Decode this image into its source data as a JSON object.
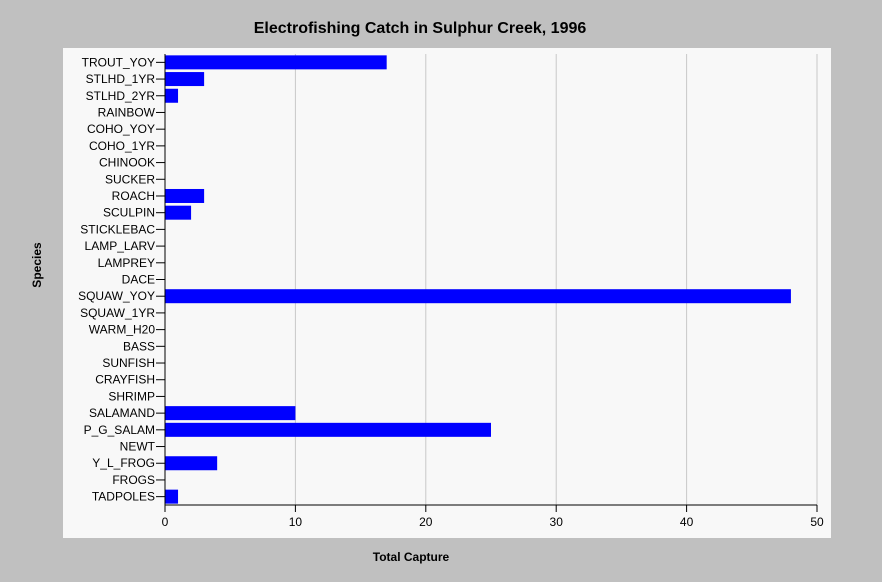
{
  "chart_data": {
    "type": "bar",
    "orientation": "horizontal",
    "title": "Electrofishing Catch in Sulphur Creek, 1996",
    "xlabel": "Total Capture",
    "ylabel": "Species",
    "xlim": [
      0,
      50
    ],
    "xticks": [
      0,
      10,
      20,
      30,
      40,
      50
    ],
    "grid": "vertical",
    "bar_color": "#0000ff",
    "plot_background": "#f8f8f8",
    "background": "#c0c0c0",
    "categories": [
      "TROUT_YOY",
      "STLHD_1YR",
      "STLHD_2YR",
      "RAINBOW",
      "COHO_YOY",
      "COHO_1YR",
      "CHINOOK",
      "SUCKER",
      "ROACH",
      "SCULPIN",
      "STICKLEBAC",
      "LAMP_LARV",
      "LAMPREY",
      "DACE",
      "SQUAW_YOY",
      "SQUAW_1YR",
      "WARM_H20",
      "BASS",
      "SUNFISH",
      "CRAYFISH",
      "SHRIMP",
      "SALAMAND",
      "P_G_SALAM",
      "NEWT",
      "Y_L_FROG",
      "FROGS",
      "TADPOLES"
    ],
    "values": [
      17,
      3,
      1,
      0,
      0,
      0,
      0,
      0,
      3,
      2,
      0,
      0,
      0,
      0,
      48,
      0,
      0,
      0,
      0,
      0,
      0,
      10,
      25,
      0,
      4,
      0,
      1
    ]
  }
}
